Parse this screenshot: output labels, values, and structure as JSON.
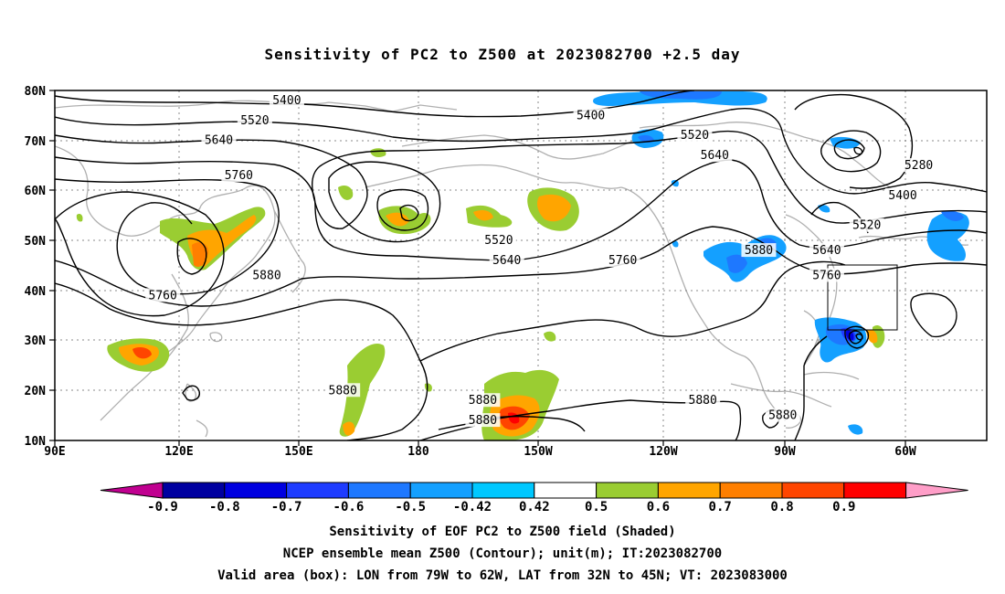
{
  "title": "Sensitivity of PC2 to Z500 at 2023082700 +2.5 day",
  "map": {
    "lat_ticks": [
      "80N",
      "70N",
      "60N",
      "50N",
      "40N",
      "30N",
      "20N",
      "10N"
    ],
    "lon_ticks": [
      "90E",
      "120E",
      "150E",
      "180",
      "150W",
      "120W",
      "90W",
      "60W"
    ],
    "extent": {
      "lon_min": 90,
      "lon_max": 323,
      "lat_min": 10,
      "lat_max": 80
    },
    "box": {
      "lon": [
        -79,
        -62
      ],
      "lat": [
        32,
        45
      ]
    }
  },
  "contour_labels": [
    {
      "text": "5400",
      "lon": 148,
      "lat": 78
    },
    {
      "text": "5400",
      "lon": 224,
      "lat": 75
    },
    {
      "text": "5520",
      "lon": 140,
      "lat": 74
    },
    {
      "text": "5520",
      "lon": 250,
      "lat": 71
    },
    {
      "text": "5640",
      "lon": 131,
      "lat": 70
    },
    {
      "text": "5640",
      "lon": 255,
      "lat": 67
    },
    {
      "text": "5760",
      "lon": 136,
      "lat": 63
    },
    {
      "text": "5280",
      "lon": 306,
      "lat": 65
    },
    {
      "text": "5400",
      "lon": 302,
      "lat": 59
    },
    {
      "text": "5520",
      "lon": 293,
      "lat": 53
    },
    {
      "text": "5520",
      "lon": 201,
      "lat": 50
    },
    {
      "text": "5640",
      "lon": 283,
      "lat": 48
    },
    {
      "text": "5640",
      "lon": 203,
      "lat": 46
    },
    {
      "text": "5760",
      "lon": 232,
      "lat": 46
    },
    {
      "text": "5880",
      "lon": 266,
      "lat": 48
    },
    {
      "text": "5760",
      "lon": 283,
      "lat": 43
    },
    {
      "text": "5880",
      "lon": 143,
      "lat": 43
    },
    {
      "text": "5760",
      "lon": 117,
      "lat": 39
    },
    {
      "text": "5880",
      "lon": 162,
      "lat": 20
    },
    {
      "text": "5880",
      "lon": 197,
      "lat": 18
    },
    {
      "text": "5880",
      "lon": 197,
      "lat": 14
    },
    {
      "text": "5880",
      "lon": 252,
      "lat": 18
    },
    {
      "text": "5880",
      "lon": 272,
      "lat": 15
    }
  ],
  "colorbar": {
    "labels": [
      "-0.9",
      "-0.8",
      "-0.7",
      "-0.6",
      "-0.5",
      "-0.42",
      "0.42",
      "0.5",
      "0.6",
      "0.7",
      "0.8",
      "0.9"
    ],
    "colors": [
      "#c00090",
      "#0000a0",
      "#0000e0",
      "#1e3cff",
      "#1e78ff",
      "#14a0ff",
      "#00c8ff",
      "#ffffff",
      "#9acd32",
      "#ffa500",
      "#ff7f00",
      "#ff4500",
      "#ff0000",
      "#ff9ec8"
    ]
  },
  "captions": [
    "Sensitivity of EOF PC2 to Z500 field (Shaded)",
    "NCEP ensemble mean Z500 (Contour); unit(m); IT:2023082700",
    "Valid area (box): LON from 79W to 62W, LAT from 32N to 45N; VT: 2023083000"
  ]
}
